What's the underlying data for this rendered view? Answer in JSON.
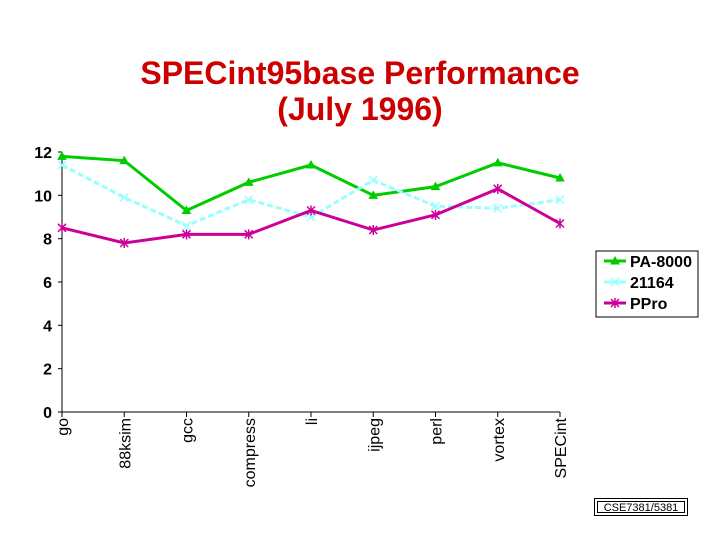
{
  "chart_data": {
    "type": "line",
    "title_line1": "SPECint95base Performance",
    "title_line2": "(July 1996)",
    "categories": [
      "go",
      "88ksim",
      "gcc",
      "compress",
      "li",
      "ijpeg",
      "perl",
      "vortex",
      "SPECint"
    ],
    "ylim": [
      0,
      12
    ],
    "yticks": [
      "0",
      "2",
      "4",
      "6",
      "8",
      "10",
      "12"
    ],
    "grid": false,
    "legend_position": "right",
    "series": [
      {
        "name": "PA-8000",
        "color": "#00cc00",
        "marker": "triangle",
        "values": [
          11.8,
          11.6,
          9.3,
          10.6,
          11.4,
          10.0,
          10.4,
          11.5,
          10.8
        ]
      },
      {
        "name": "21164",
        "color": "#99ffff",
        "marker": "x",
        "values": [
          11.4,
          9.9,
          8.6,
          9.8,
          9.0,
          10.7,
          9.5,
          9.4,
          9.8
        ]
      },
      {
        "name": "PPro",
        "color": "#cc0099",
        "marker": "star",
        "values": [
          8.5,
          7.8,
          8.2,
          8.2,
          9.3,
          8.4,
          9.1,
          10.3,
          8.7
        ]
      }
    ]
  },
  "footer": {
    "label": "CSE7381/5381"
  }
}
